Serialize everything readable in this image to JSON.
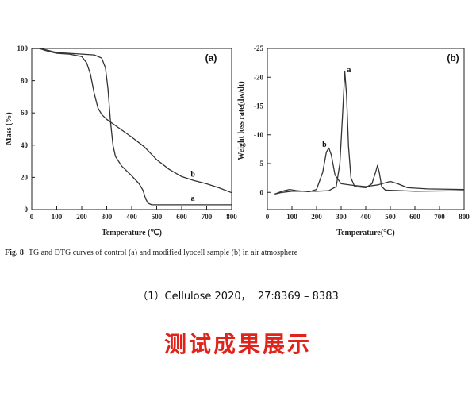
{
  "caption": {
    "fig": "Fig. 8",
    "text": "TG and DTG curves of control (a) and modified lyocell sample (b) in air atmosphere"
  },
  "citation": "（1）Cellulose 2020，  27:8369 – 8383",
  "title": "测试成果展示",
  "colors": {
    "title": "#e2231a",
    "lines": "#333333"
  },
  "chart_data": [
    {
      "type": "line",
      "panel_label": "(a)",
      "xlabel": "Temperature (℃)",
      "ylabel": "Mass (%)",
      "xlim": [
        0,
        800
      ],
      "ylim": [
        0,
        100
      ],
      "y_inverted": false,
      "xticks": [
        0,
        100,
        200,
        300,
        400,
        500,
        600,
        700,
        800
      ],
      "yticks": [
        0,
        20,
        40,
        60,
        80,
        100
      ],
      "grid": false,
      "series": [
        {
          "name": "a",
          "x": [
            0,
            30,
            60,
            100,
            150,
            200,
            250,
            280,
            295,
            305,
            315,
            325,
            335,
            360,
            400,
            430,
            445,
            455,
            465,
            480,
            600,
            800
          ],
          "y": [
            100,
            100,
            99,
            97.5,
            97,
            96.5,
            96,
            94,
            88,
            75,
            55,
            40,
            33,
            27,
            21,
            16,
            12,
            7,
            4,
            3,
            3,
            3
          ]
        },
        {
          "name": "b",
          "x": [
            0,
            30,
            60,
            100,
            150,
            200,
            220,
            235,
            250,
            265,
            280,
            300,
            350,
            400,
            450,
            500,
            550,
            600,
            650,
            700,
            750,
            800
          ],
          "y": [
            100,
            100,
            98.5,
            97,
            96.5,
            95,
            91,
            84,
            72,
            63,
            59,
            56,
            50.5,
            45,
            39,
            31,
            25,
            20.5,
            18,
            16,
            13.5,
            10.5
          ]
        }
      ]
    },
    {
      "type": "line",
      "panel_label": "(b)",
      "xlabel": "Temperature(°C)",
      "ylabel": "Weight loss rate(dw/dt)",
      "xlim": [
        0,
        800
      ],
      "ylim": [
        -25,
        3
      ],
      "y_inverted": true,
      "xticks": [
        0,
        100,
        200,
        300,
        400,
        500,
        600,
        700,
        800
      ],
      "yticks": [
        -25,
        -20,
        -15,
        -10,
        -5,
        0
      ],
      "grid": false,
      "series": [
        {
          "name": "a",
          "x": [
            30,
            60,
            100,
            150,
            200,
            250,
            280,
            295,
            305,
            315,
            322,
            330,
            340,
            355,
            400,
            425,
            440,
            448,
            455,
            465,
            480,
            600,
            800
          ],
          "y": [
            0.3,
            0,
            -0.2,
            -0.2,
            -0.2,
            -0.3,
            -1,
            -5,
            -13,
            -21,
            -17,
            -8,
            -2.5,
            -1,
            -0.8,
            -1.5,
            -3.5,
            -4.7,
            -3.5,
            -1,
            -0.4,
            -0.2,
            -0.3
          ]
        },
        {
          "name": "b",
          "x": [
            30,
            60,
            90,
            120,
            170,
            200,
            225,
            240,
            250,
            260,
            275,
            300,
            350,
            400,
            450,
            500,
            530,
            570,
            650,
            800
          ],
          "y": [
            0.3,
            -0.2,
            -0.5,
            -0.3,
            -0.1,
            -0.5,
            -3.5,
            -7,
            -7.7,
            -6.5,
            -3,
            -1.5,
            -1.2,
            -1,
            -1.3,
            -1.9,
            -1.5,
            -0.8,
            -0.6,
            -0.5
          ]
        }
      ]
    }
  ]
}
